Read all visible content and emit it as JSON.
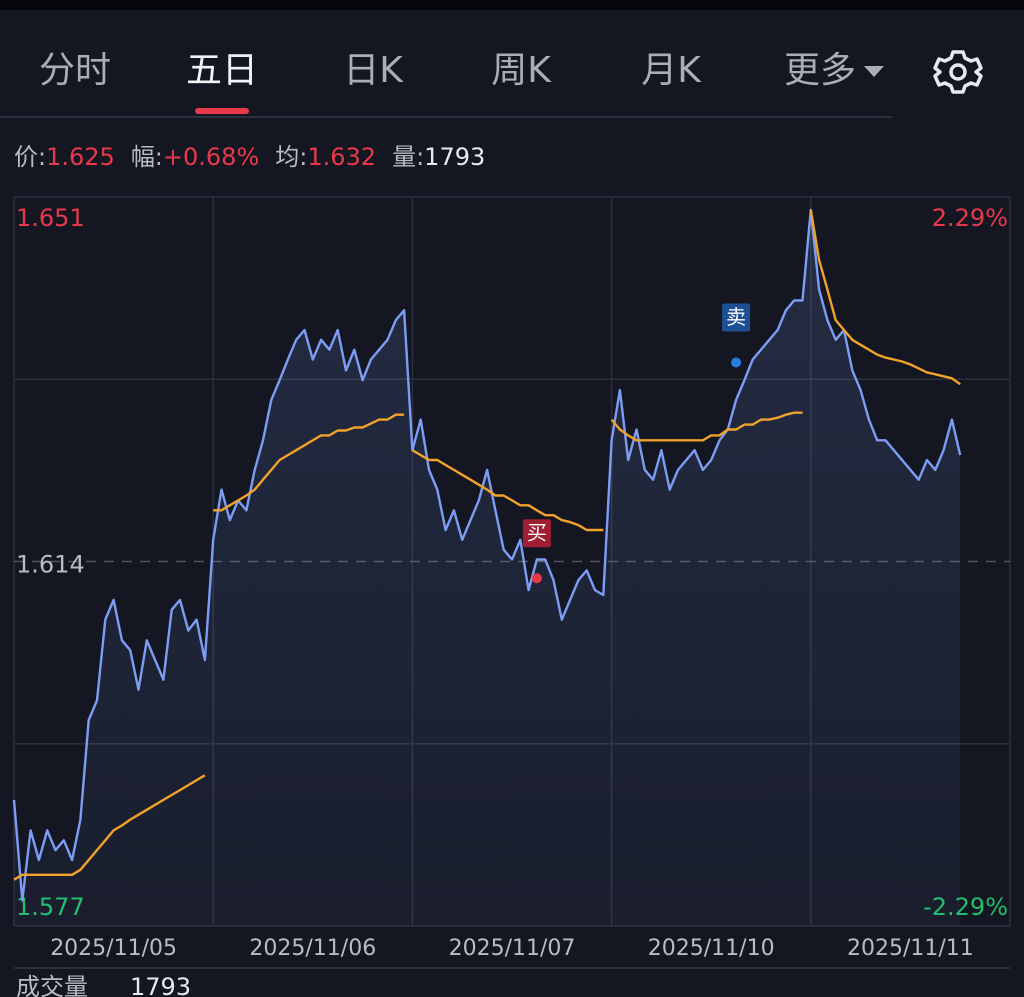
{
  "tabs": {
    "items": [
      "分时",
      "五日",
      "日K",
      "周K",
      "月K",
      "更多"
    ],
    "active": 1
  },
  "quote": {
    "price_label": "价:",
    "price": 1.625,
    "range_label": "幅:",
    "range": "+0.68%",
    "avg_label": "均:",
    "avg": 1.632,
    "volume_label": "量:",
    "volume": 1793
  },
  "chart_data": {
    "type": "line",
    "categories": [
      "2025/11/05",
      "2025/11/06",
      "2025/11/07",
      "2025/11/10",
      "2025/11/11"
    ],
    "ylim": [
      1.577,
      1.651
    ],
    "yticks": [
      1.577,
      1.614,
      1.651
    ],
    "y2lim": [
      -2.29,
      2.29
    ],
    "y2ticks": [
      {
        "value": -2.29,
        "label": "-2.29%"
      },
      {
        "value": 2.29,
        "label": "2.29%"
      }
    ],
    "series": [
      {
        "color": "#7d9df5",
        "values": [
          [
            1.5898,
            1.5796,
            1.5867,
            1.5837,
            1.5867,
            1.5847,
            1.5857,
            1.5837,
            1.5878,
            1.5979,
            1.5999,
            1.6081,
            1.6101,
            1.606,
            1.605,
            1.601,
            1.606,
            1.604,
            1.602,
            1.6091,
            1.6101,
            1.607,
            1.6081,
            1.604
          ],
          [
            1.6162,
            1.6213,
            1.6182,
            1.6202,
            1.6192,
            1.6233,
            1.6263,
            1.6304,
            1.6324,
            1.6345,
            1.6365,
            1.6375,
            1.6345,
            1.6365,
            1.6355,
            1.6375,
            1.6334,
            1.6355,
            1.6324,
            1.6345,
            1.6355,
            1.6365,
            1.6385,
            1.6395
          ],
          [
            1.6253,
            1.6284,
            1.6233,
            1.6213,
            1.6172,
            1.6192,
            1.6162,
            1.6182,
            1.6202,
            1.6233,
            1.6192,
            1.6152,
            1.6142,
            1.6162,
            1.6111,
            1.6142,
            1.6142,
            1.6121,
            1.6081,
            1.6101,
            1.6121,
            1.6131,
            1.6111,
            1.6106
          ],
          [
            1.6263,
            1.6314,
            1.6243,
            1.6274,
            1.6233,
            1.6223,
            1.6253,
            1.6213,
            1.6233,
            1.6243,
            1.6253,
            1.6233,
            1.6243,
            1.6263,
            1.6274,
            1.6304,
            1.6324,
            1.6345,
            1.6355,
            1.6365,
            1.6375,
            1.6395,
            1.6405,
            1.6405
          ],
          [
            1.6497,
            1.6416,
            1.6385,
            1.6365,
            1.6375,
            1.6334,
            1.6314,
            1.6284,
            1.6263,
            1.6263,
            1.6253,
            1.6243,
            1.6233,
            1.6223,
            1.6243,
            1.6233,
            1.6253,
            1.6284,
            1.6248
          ]
        ]
      },
      {
        "color": "#f0a22a",
        "values": [
          [
            1.5817,
            1.5822,
            1.5822,
            1.5822,
            1.5822,
            1.5822,
            1.5822,
            1.5822,
            1.5827,
            1.5837,
            1.5847,
            1.5857,
            1.5867,
            1.5872,
            1.5878,
            1.5883,
            1.5888,
            1.5893,
            1.5898,
            1.5903,
            1.5908,
            1.5913,
            1.5918,
            1.5923
          ],
          [
            1.6192,
            1.6192,
            1.6197,
            1.6202,
            1.6207,
            1.6213,
            1.6223,
            1.6233,
            1.6243,
            1.6248,
            1.6253,
            1.6258,
            1.6263,
            1.6268,
            1.6268,
            1.6273,
            1.6273,
            1.6276,
            1.6276,
            1.628,
            1.6284,
            1.6284,
            1.6289,
            1.6289
          ],
          [
            1.6253,
            1.6248,
            1.6243,
            1.6243,
            1.6238,
            1.6233,
            1.6228,
            1.6223,
            1.6218,
            1.6213,
            1.6207,
            1.6207,
            1.6202,
            1.6197,
            1.6197,
            1.6192,
            1.6187,
            1.6187,
            1.6182,
            1.618,
            1.6177,
            1.6172,
            1.6172,
            1.6172
          ],
          [
            1.6284,
            1.6274,
            1.6268,
            1.6263,
            1.6263,
            1.6263,
            1.6263,
            1.6263,
            1.6263,
            1.6263,
            1.6263,
            1.6263,
            1.6268,
            1.6268,
            1.6274,
            1.6274,
            1.6279,
            1.6279,
            1.6284,
            1.6284,
            1.6286,
            1.6289,
            1.6291,
            1.6291
          ],
          [
            1.6497,
            1.6446,
            1.6416,
            1.6385,
            1.6375,
            1.6365,
            1.636,
            1.6355,
            1.635,
            1.6347,
            1.6345,
            1.6343,
            1.634,
            1.6336,
            1.6332,
            1.633,
            1.6328,
            1.6326,
            1.632
          ]
        ]
      }
    ],
    "markers": [
      {
        "label": "买",
        "day": 2,
        "index": 15,
        "value": 1.6123,
        "color": "#a01d33"
      },
      {
        "label": "卖",
        "day": 3,
        "index": 15,
        "value": 1.6342,
        "color": "#1c4f94"
      }
    ]
  },
  "footer": {
    "label": "成交量",
    "volume": 1793
  }
}
